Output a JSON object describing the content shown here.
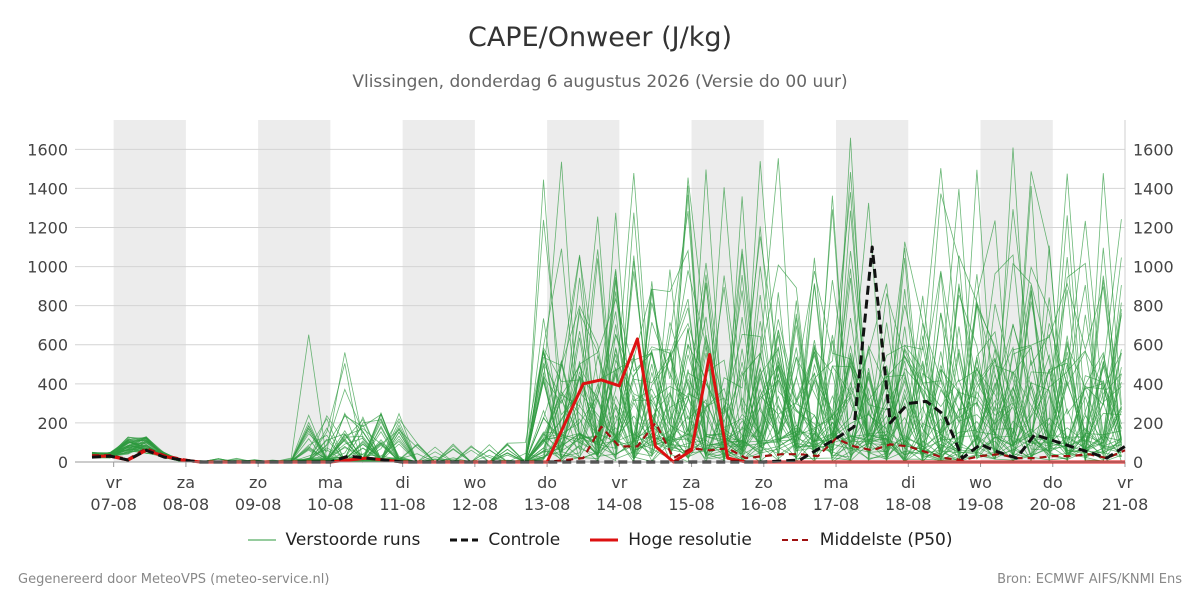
{
  "title": "CAPE/Onweer (J/kg)",
  "subtitle": "Vlissingen, donderdag  6 augustus 2026 (Versie do 00 uur)",
  "footer": {
    "left": "Gegenereerd door MeteoVPS (meteo-service.nl)",
    "right": "Bron: ECMWF AIFS/KNMI Ens"
  },
  "legend": [
    {
      "label": "Verstoorde runs",
      "color": "#2e9a3e",
      "style": "thin"
    },
    {
      "label": "Controle",
      "color": "#111111",
      "style": "dashed"
    },
    {
      "label": "Hoge resolutie",
      "color": "#dd1111",
      "style": "solid"
    },
    {
      "label": "Middelste (P50)",
      "color": "#a01010",
      "style": "dashed"
    }
  ],
  "chart_data": {
    "type": "line",
    "title": "CAPE/Onweer (J/kg)",
    "ylim": [
      0,
      1750
    ],
    "yticks": [
      0,
      200,
      400,
      600,
      800,
      1000,
      1200,
      1400,
      1600
    ],
    "xlim": [
      6.7,
      21.0
    ],
    "xticks": [
      {
        "x": 7,
        "day": "vr",
        "date": "07-08"
      },
      {
        "x": 8,
        "day": "za",
        "date": "08-08"
      },
      {
        "x": 9,
        "day": "zo",
        "date": "09-08"
      },
      {
        "x": 10,
        "day": "ma",
        "date": "10-08"
      },
      {
        "x": 11,
        "day": "di",
        "date": "11-08"
      },
      {
        "x": 12,
        "day": "wo",
        "date": "12-08"
      },
      {
        "x": 13,
        "day": "do",
        "date": "13-08"
      },
      {
        "x": 14,
        "day": "vr",
        "date": "14-08"
      },
      {
        "x": 15,
        "day": "za",
        "date": "15-08"
      },
      {
        "x": 16,
        "day": "zo",
        "date": "16-08"
      },
      {
        "x": 17,
        "day": "ma",
        "date": "17-08"
      },
      {
        "x": 18,
        "day": "di",
        "date": "18-08"
      },
      {
        "x": 19,
        "day": "wo",
        "date": "19-08"
      },
      {
        "x": 20,
        "day": "do",
        "date": "20-08"
      },
      {
        "x": 21,
        "day": "vr",
        "date": "21-08"
      }
    ],
    "weekend_bands": [
      [
        7,
        8
      ],
      [
        9,
        10
      ],
      [
        11,
        12
      ],
      [
        13,
        14
      ],
      [
        15,
        16
      ],
      [
        17,
        18
      ],
      [
        19,
        20
      ]
    ],
    "grid": true,
    "series": [
      {
        "name": "Hoge resolutie",
        "color": "#dd1111",
        "points": [
          [
            6.7,
            30
          ],
          [
            6.95,
            30
          ],
          [
            7.2,
            10
          ],
          [
            7.45,
            60
          ],
          [
            7.7,
            30
          ],
          [
            7.95,
            10
          ],
          [
            8.2,
            0
          ],
          [
            10,
            0
          ],
          [
            10.5,
            20
          ],
          [
            11,
            0
          ],
          [
            13,
            0
          ],
          [
            13.25,
            200
          ],
          [
            13.5,
            400
          ],
          [
            13.75,
            420
          ],
          [
            14.0,
            390
          ],
          [
            14.25,
            630
          ],
          [
            14.5,
            80
          ],
          [
            14.75,
            0
          ],
          [
            15.0,
            60
          ],
          [
            15.25,
            550
          ],
          [
            15.5,
            20
          ],
          [
            15.75,
            0
          ],
          [
            21,
            0
          ]
        ]
      },
      {
        "name": "Controle",
        "color": "#111111",
        "points": [
          [
            6.7,
            25
          ],
          [
            6.95,
            30
          ],
          [
            7.2,
            10
          ],
          [
            7.45,
            60
          ],
          [
            7.7,
            25
          ],
          [
            7.95,
            10
          ],
          [
            8.2,
            0
          ],
          [
            10,
            0
          ],
          [
            10.25,
            30
          ],
          [
            10.5,
            20
          ],
          [
            11,
            0
          ],
          [
            13,
            0
          ],
          [
            14,
            0
          ],
          [
            15,
            0
          ],
          [
            16,
            0
          ],
          [
            16.5,
            10
          ],
          [
            17,
            120
          ],
          [
            17.25,
            180
          ],
          [
            17.5,
            1100
          ],
          [
            17.75,
            200
          ],
          [
            18.0,
            300
          ],
          [
            18.25,
            310
          ],
          [
            18.5,
            240
          ],
          [
            18.75,
            20
          ],
          [
            19.0,
            90
          ],
          [
            19.25,
            50
          ],
          [
            19.5,
            20
          ],
          [
            19.75,
            140
          ],
          [
            20.0,
            110
          ],
          [
            20.25,
            80
          ],
          [
            20.5,
            50
          ],
          [
            20.75,
            20
          ],
          [
            21.0,
            80
          ]
        ]
      },
      {
        "name": "Middelste (P50)",
        "color": "#a01010",
        "points": [
          [
            6.7,
            35
          ],
          [
            6.95,
            35
          ],
          [
            7.2,
            15
          ],
          [
            7.45,
            70
          ],
          [
            7.7,
            35
          ],
          [
            7.95,
            15
          ],
          [
            8.2,
            0
          ],
          [
            10,
            0
          ],
          [
            10.5,
            20
          ],
          [
            11,
            0
          ],
          [
            13,
            0
          ],
          [
            13.5,
            20
          ],
          [
            13.75,
            180
          ],
          [
            14.0,
            80
          ],
          [
            14.25,
            80
          ],
          [
            14.5,
            200
          ],
          [
            14.75,
            20
          ],
          [
            15.0,
            70
          ],
          [
            15.25,
            60
          ],
          [
            15.5,
            70
          ],
          [
            15.75,
            20
          ],
          [
            16.0,
            30
          ],
          [
            16.25,
            40
          ],
          [
            16.5,
            40
          ],
          [
            16.75,
            30
          ],
          [
            17.0,
            120
          ],
          [
            17.25,
            80
          ],
          [
            17.5,
            60
          ],
          [
            17.75,
            90
          ],
          [
            18.0,
            80
          ],
          [
            18.25,
            50
          ],
          [
            18.5,
            20
          ],
          [
            18.75,
            10
          ],
          [
            19.0,
            30
          ],
          [
            19.25,
            40
          ],
          [
            19.5,
            20
          ],
          [
            19.75,
            20
          ],
          [
            20.0,
            30
          ],
          [
            20.25,
            30
          ],
          [
            20.5,
            40
          ],
          [
            20.75,
            20
          ],
          [
            21.0,
            60
          ]
        ]
      }
    ],
    "ensemble": {
      "name": "Verstoorde runs",
      "members": 50,
      "color": "#2e9a3e",
      "max": 1750
    }
  }
}
